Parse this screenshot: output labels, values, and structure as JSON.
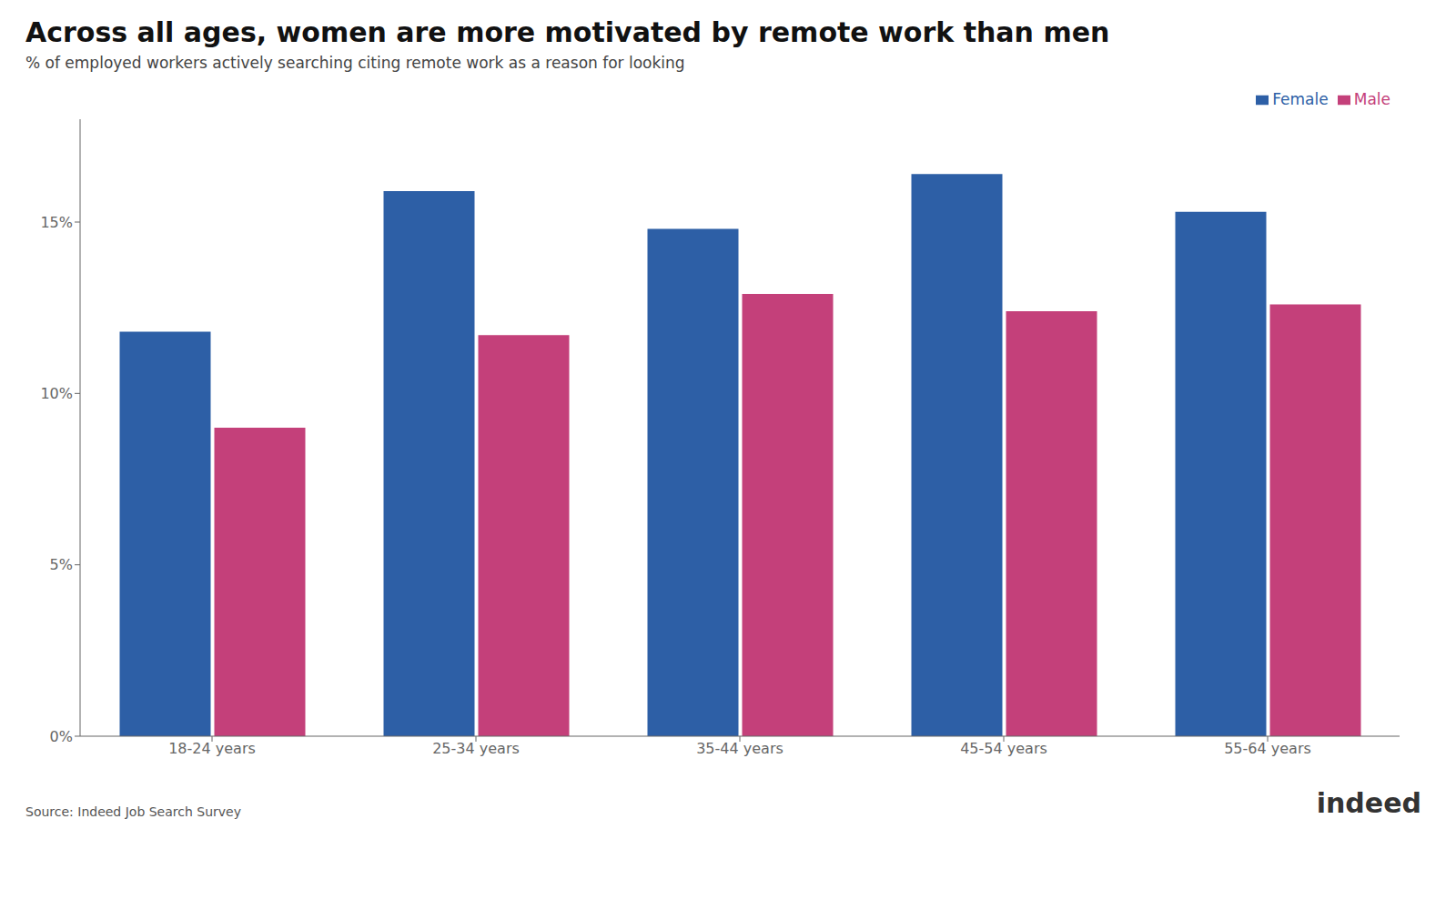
{
  "chart_data": {
    "type": "bar",
    "title": "Across all ages, women are more motivated by remote work than men",
    "subtitle": "% of employed workers actively searching citing remote work as a reason for looking",
    "categories": [
      "18-24 years",
      "25-34 years",
      "35-44 years",
      "45-54 years",
      "55-64 years"
    ],
    "series": [
      {
        "name": "Female",
        "color": "#2d5fa6",
        "values": [
          11.8,
          15.9,
          14.8,
          16.4,
          15.3
        ]
      },
      {
        "name": "Male",
        "color": "#c4407a",
        "values": [
          9.0,
          11.7,
          12.9,
          12.4,
          12.6
        ]
      }
    ],
    "ylim": [
      0,
      18
    ],
    "yticks": [
      {
        "value": 0,
        "label": "0%"
      },
      {
        "value": 5,
        "label": "5%"
      },
      {
        "value": 10,
        "label": "10%"
      },
      {
        "value": 15,
        "label": "15%"
      }
    ],
    "grid": false,
    "legend": "upper right",
    "annotations": [
      "Source: Indeed Job Search Survey",
      "indeed"
    ]
  }
}
